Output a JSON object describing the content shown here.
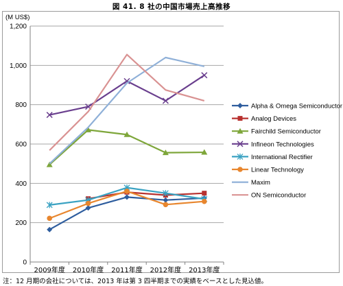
{
  "figure": {
    "title": "図 41.  8 社の中国市場売上高推移",
    "note": "注：12 月期の会社については、2013 年は第 3 四半期までの実績をベースとした見込値。"
  },
  "chart_data": {
    "type": "line",
    "title": "",
    "ylabel": "(M US$)",
    "xlabel": "",
    "categories": [
      "2009年度",
      "2010年度",
      "2011年度",
      "2012年度",
      "2013年度"
    ],
    "ylim": [
      0,
      1200
    ],
    "yticks": [
      "0",
      "200",
      "400",
      "600",
      "800",
      "1,000",
      "1,200"
    ],
    "ytick_values": [
      0,
      200,
      400,
      600,
      800,
      1000,
      1200
    ],
    "grid": true,
    "legend_position": "right",
    "series": [
      {
        "name": "Alpha & Omega Semiconductor",
        "values": [
          165,
          275,
          330,
          315,
          325
        ],
        "color": "#2e5d9e",
        "marker": "diamond"
      },
      {
        "name": "Analog Devices",
        "values": [
          null,
          322,
          355,
          340,
          350
        ],
        "color": "#b8312f",
        "marker": "square"
      },
      {
        "name": "Fairchild Semiconductor",
        "values": [
          495,
          672,
          648,
          556,
          558
        ],
        "color": "#7ea63a",
        "marker": "triangle"
      },
      {
        "name": "Infineon Technologies",
        "values": [
          748,
          790,
          920,
          820,
          950
        ],
        "color": "#6a3f8e",
        "marker": "x"
      },
      {
        "name": "International Rectifier",
        "values": [
          290,
          315,
          378,
          350,
          320
        ],
        "color": "#3aa2c2",
        "marker": "star"
      },
      {
        "name": "Linear Technology",
        "values": [
          222,
          298,
          360,
          292,
          308
        ],
        "color": "#e8862e",
        "marker": "circle"
      },
      {
        "name": "Maxim",
        "values": [
          500,
          685,
          910,
          1040,
          995
        ],
        "color": "#8fb0d8",
        "marker": "none"
      },
      {
        "name": "ON Semiconductor",
        "values": [
          568,
          765,
          1055,
          875,
          820
        ],
        "color": "#d99292",
        "marker": "none"
      }
    ]
  }
}
